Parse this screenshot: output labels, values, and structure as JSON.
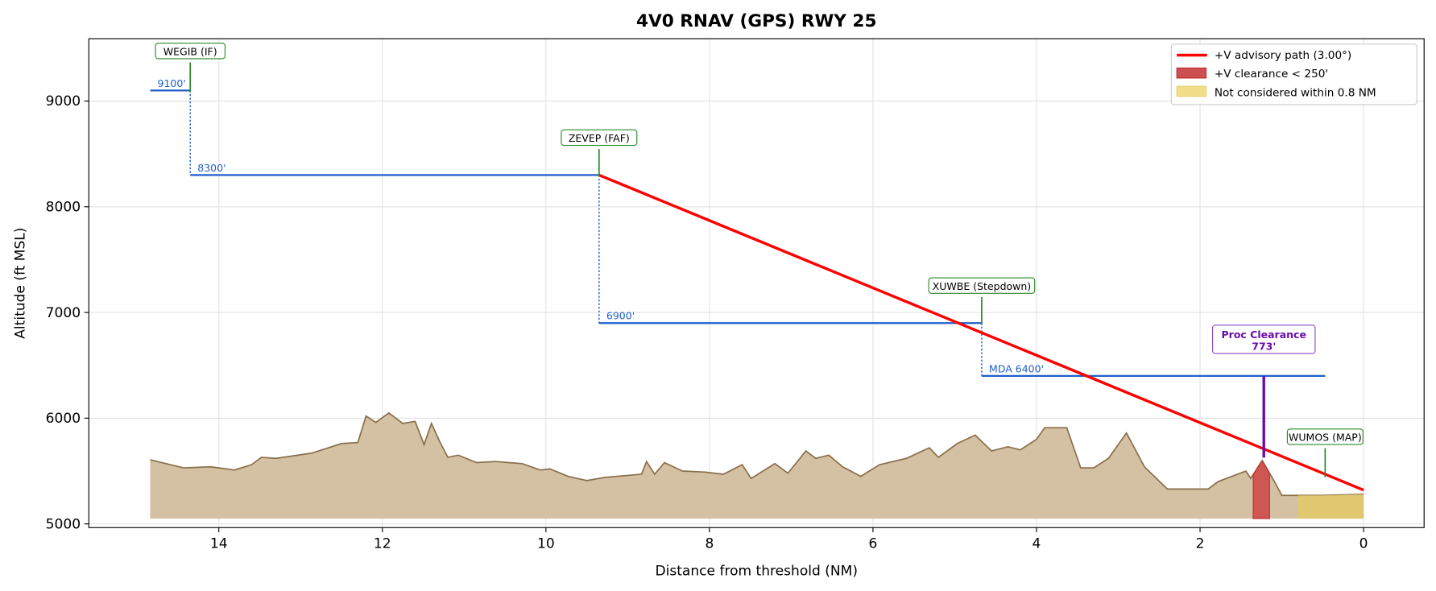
{
  "chart_data": {
    "type": "line",
    "title": "4V0  RNAV (GPS) RWY 25",
    "xlabel": "Distance from threshold (NM)",
    "ylabel": "Altitude (ft MSL)",
    "xlim": [
      15.59,
      -0.74
    ],
    "ylim": [
      4965,
      9590
    ],
    "xticks": [
      14,
      12,
      10,
      8,
      6,
      4,
      2,
      0
    ],
    "yticks": [
      5000,
      6000,
      7000,
      8000,
      9000
    ],
    "grid": true,
    "legend_position": "top-right",
    "legend": [
      {
        "label": "+V advisory path (3.00°)",
        "color": "#ff0000",
        "kind": "line"
      },
      {
        "label": "+V clearance < 250'",
        "color": "#cd5050",
        "kind": "patch"
      },
      {
        "label": "Not considered within 0.8 NM",
        "color": "#f0de8a",
        "kind": "patch"
      }
    ],
    "advisory_path": {
      "from": [
        9.35,
        8300
      ],
      "to": [
        0,
        5320
      ],
      "color": "#ff0000"
    },
    "step_segments": [
      {
        "x0": 14.84,
        "x1": 14.35,
        "alt": 9100,
        "label": "9100'"
      },
      {
        "x0": 14.35,
        "x1": 9.35,
        "alt": 8300,
        "label": "8300'"
      },
      {
        "x0": 9.35,
        "x1": 4.67,
        "alt": 6900,
        "label": "6900'"
      },
      {
        "x0": 4.67,
        "x1": 0.47,
        "alt": 6400,
        "label": "MDA 6400'"
      }
    ],
    "fixes": [
      {
        "name": "WEGIB (IF)",
        "x": 14.35,
        "alt": 9100,
        "label_alt": 9470
      },
      {
        "name": "ZEVEP (FAF)",
        "x": 9.35,
        "alt": 8300,
        "label_alt": 8650
      },
      {
        "name": "XUWBE (Stepdown)",
        "x": 4.67,
        "alt": 6900,
        "label_alt": 7250
      },
      {
        "name": "WUMOS (MAP)",
        "x": 0.47,
        "alt": 5460,
        "label_alt": 5820
      }
    ],
    "proc_clearance": {
      "title": "Proc Clearance",
      "value": "773'",
      "x": 1.22,
      "top": 6400,
      "bottom": 5627,
      "label_alt": 6750,
      "color": "#6a0dad"
    },
    "clearance_zone": [
      1.35,
      1.15
    ],
    "not_considered_zone": [
      0.8,
      0
    ],
    "terrain_base": 5050,
    "terrain": [
      [
        14.84,
        5606
      ],
      [
        14.43,
        5530
      ],
      [
        14.1,
        5540
      ],
      [
        13.81,
        5510
      ],
      [
        13.6,
        5560
      ],
      [
        13.48,
        5630
      ],
      [
        13.3,
        5620
      ],
      [
        12.86,
        5670
      ],
      [
        12.5,
        5760
      ],
      [
        12.3,
        5770
      ],
      [
        12.2,
        6020
      ],
      [
        12.08,
        5960
      ],
      [
        11.92,
        6050
      ],
      [
        11.75,
        5950
      ],
      [
        11.6,
        5970
      ],
      [
        11.49,
        5750
      ],
      [
        11.4,
        5950
      ],
      [
        11.3,
        5780
      ],
      [
        11.2,
        5630
      ],
      [
        11.07,
        5650
      ],
      [
        10.85,
        5580
      ],
      [
        10.62,
        5590
      ],
      [
        10.29,
        5570
      ],
      [
        10.07,
        5510
      ],
      [
        9.95,
        5520
      ],
      [
        9.73,
        5450
      ],
      [
        9.5,
        5410
      ],
      [
        9.28,
        5440
      ],
      [
        8.83,
        5470
      ],
      [
        8.77,
        5590
      ],
      [
        8.67,
        5470
      ],
      [
        8.55,
        5580
      ],
      [
        8.33,
        5500
      ],
      [
        8.05,
        5490
      ],
      [
        7.83,
        5470
      ],
      [
        7.6,
        5560
      ],
      [
        7.49,
        5430
      ],
      [
        7.2,
        5570
      ],
      [
        7.04,
        5480
      ],
      [
        6.82,
        5690
      ],
      [
        6.7,
        5620
      ],
      [
        6.54,
        5650
      ],
      [
        6.37,
        5540
      ],
      [
        6.15,
        5450
      ],
      [
        5.92,
        5560
      ],
      [
        5.59,
        5620
      ],
      [
        5.48,
        5660
      ],
      [
        5.31,
        5720
      ],
      [
        5.2,
        5630
      ],
      [
        4.97,
        5760
      ],
      [
        4.75,
        5840
      ],
      [
        4.55,
        5690
      ],
      [
        4.35,
        5730
      ],
      [
        4.2,
        5700
      ],
      [
        4.0,
        5800
      ],
      [
        3.9,
        5910
      ],
      [
        3.63,
        5910
      ],
      [
        3.46,
        5530
      ],
      [
        3.3,
        5530
      ],
      [
        3.12,
        5620
      ],
      [
        2.9,
        5860
      ],
      [
        2.68,
        5540
      ],
      [
        2.4,
        5330
      ],
      [
        1.9,
        5330
      ],
      [
        1.78,
        5400
      ],
      [
        1.44,
        5500
      ],
      [
        1.38,
        5430
      ],
      [
        1.24,
        5600
      ],
      [
        1.09,
        5400
      ],
      [
        1.0,
        5270
      ],
      [
        0.5,
        5270
      ],
      [
        0,
        5280
      ]
    ]
  }
}
